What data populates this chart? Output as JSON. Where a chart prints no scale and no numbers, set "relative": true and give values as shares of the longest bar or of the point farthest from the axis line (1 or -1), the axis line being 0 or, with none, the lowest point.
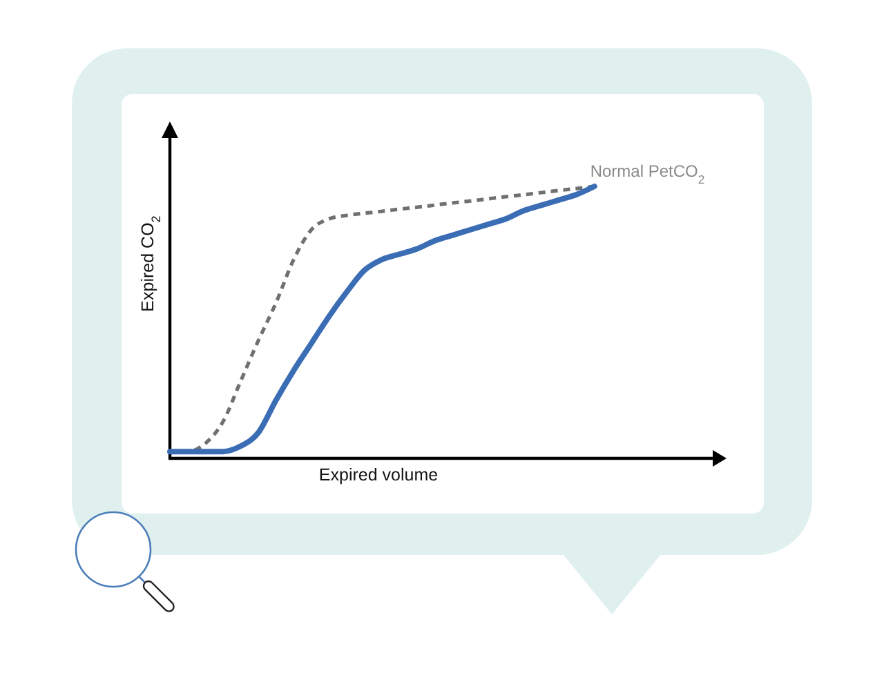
{
  "chart_data": {
    "type": "line",
    "relative": true,
    "xlabel": "Expired volume",
    "ylabel": "Expired CO$_{2}$",
    "categories": [
      null,
      null,
      null,
      null,
      null,
      null,
      null,
      null,
      null,
      null,
      null,
      null,
      null,
      null,
      null,
      null,
      null,
      null,
      null,
      null,
      null,
      null,
      null,
      null,
      null,
      null,
      null,
      null,
      null,
      null,
      null,
      null
    ],
    "series": [
      {
        "color": "#707070",
        "line_style": "dashed",
        "values": [
          0.02,
          0.02,
          0.05,
          0.13,
          0.28,
          0.43,
          0.57,
          0.73,
          0.84,
          0.88,
          0.893,
          0.901,
          0.908,
          0.916,
          0.923,
          0.931,
          0.939,
          0.946,
          0.954,
          0.962,
          0.969,
          0.977,
          0.985,
          0.992,
          1.0,
          null,
          null,
          null,
          null,
          null,
          null,
          null
        ]
      },
      {
        "color": "#3b6db5",
        "line_style": "solid",
        "values": [
          0.02,
          0.02,
          0.02,
          0.02,
          0.04,
          0.09,
          0.21,
          0.32,
          0.42,
          0.52,
          0.61,
          0.69,
          0.73,
          0.75,
          0.77,
          0.8,
          0.82,
          0.84,
          0.86,
          0.88,
          0.91,
          0.93,
          0.95,
          0.97,
          1.0,
          null,
          null,
          null,
          null,
          null,
          null,
          null
        ]
      }
    ],
    "annotations": [
      "Normal PetCO$_{2}$"
    ]
  }
}
